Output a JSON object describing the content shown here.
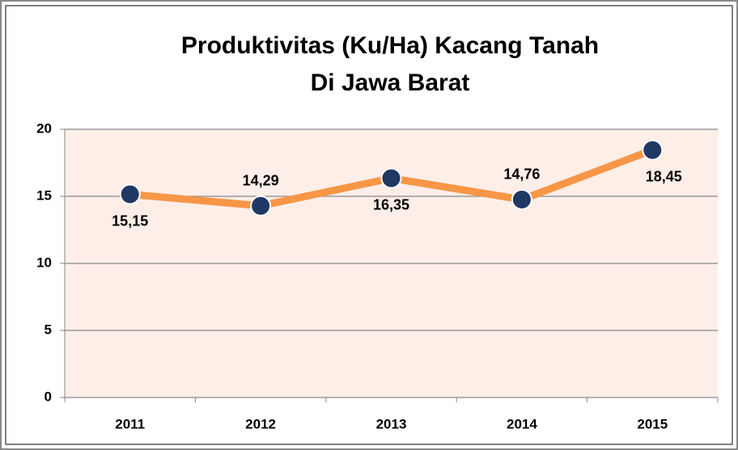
{
  "chart_data": {
    "type": "line",
    "title": [
      "Produktivitas (Ku/Ha) Kacang Tanah",
      "Di Jawa Barat"
    ],
    "categories": [
      "2011",
      "2012",
      "2013",
      "2014",
      "2015"
    ],
    "values": [
      15.15,
      14.29,
      16.35,
      14.76,
      18.45
    ],
    "value_labels": [
      "15,15",
      "14,29",
      "16,35",
      "14,76",
      "18,45"
    ],
    "color": "#f79646",
    "marker_color": "#1f3864",
    "ylim": [
      0,
      20
    ],
    "yticks": [
      0,
      5,
      10,
      15,
      20
    ],
    "grid": true
  }
}
